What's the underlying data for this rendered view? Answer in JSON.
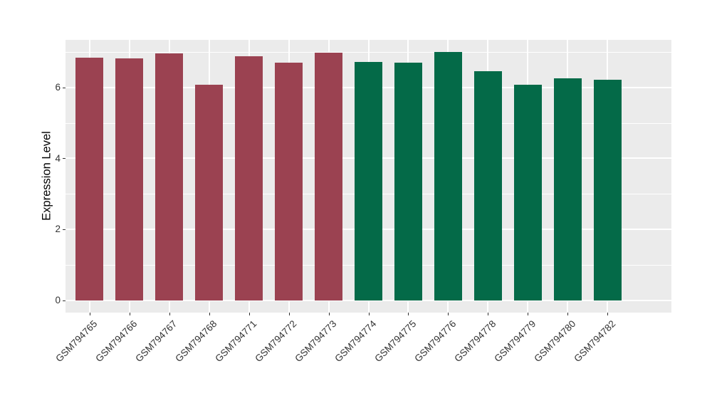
{
  "chart_data": {
    "type": "bar",
    "title": "",
    "xlabel": "",
    "ylabel": "Expression Level",
    "categories": [
      "GSM794765",
      "GSM794766",
      "GSM794767",
      "GSM794768",
      "GSM794771",
      "GSM794772",
      "GSM794773",
      "GSM794774",
      "GSM794775",
      "GSM794776",
      "GSM794778",
      "GSM794779",
      "GSM794780",
      "GSM794782"
    ],
    "values": [
      6.84,
      6.82,
      6.95,
      6.08,
      6.88,
      6.7,
      6.97,
      6.71,
      6.69,
      6.99,
      6.45,
      6.08,
      6.26,
      6.22
    ],
    "bar_colors": [
      "#9B4251",
      "#9B4251",
      "#9B4251",
      "#9B4251",
      "#9B4251",
      "#9B4251",
      "#9B4251",
      "#046A48",
      "#046A48",
      "#046A48",
      "#046A48",
      "#046A48",
      "#046A48",
      "#046A48"
    ],
    "group_colors": {
      "left_group": "#9B4251",
      "right_group": "#046A48"
    },
    "yticks": [
      0,
      2,
      4,
      6
    ],
    "yticks_minor": [
      1,
      3,
      5,
      7
    ],
    "ylim": [
      -0.35,
      7.34
    ],
    "bar_width_fraction": 0.7,
    "legend": "none",
    "grid": true,
    "panel_bg": "#EBEBEB",
    "grid_major_color": "#FFFFFF",
    "grid_minor_color": "#FFFFFF",
    "tick_color": "#333333",
    "axis_text_color": "#333333"
  }
}
